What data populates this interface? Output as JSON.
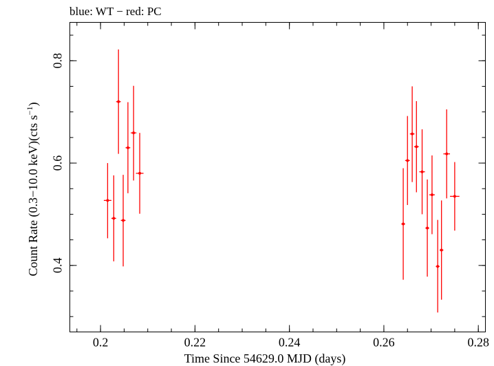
{
  "chart_data": {
    "type": "scatter",
    "title": "blue: WT − red: PC",
    "xlabel": "Time Since 54629.0 MJD (days)",
    "ylabel_main": "Count Rate (0.3−10.0 keV)(cts s",
    "ylabel_sup": "−1",
    "ylabel_tail": ")",
    "xlim": [
      0.1935,
      0.2815
    ],
    "ylim": [
      0.27,
      0.875
    ],
    "xticks": [
      {
        "v": 0.2,
        "label": "0.2"
      },
      {
        "v": 0.22,
        "label": "0.22"
      },
      {
        "v": 0.24,
        "label": "0.24"
      },
      {
        "v": 0.26,
        "label": "0.26"
      },
      {
        "v": 0.28,
        "label": "0.28"
      }
    ],
    "yticks": [
      {
        "v": 0.4,
        "label": "0.4"
      },
      {
        "v": 0.6,
        "label": "0.6"
      },
      {
        "v": 0.8,
        "label": "0.8"
      }
    ],
    "grid": false,
    "series": [
      {
        "color": "#ff0000",
        "points": [
          {
            "x": 0.2015,
            "xerr": 0.0008,
            "y": 0.527,
            "ylo": 0.453,
            "yhi": 0.6
          },
          {
            "x": 0.2028,
            "xerr": 0.0005,
            "y": 0.492,
            "ylo": 0.408,
            "yhi": 0.576
          },
          {
            "x": 0.2038,
            "xerr": 0.0005,
            "y": 0.72,
            "ylo": 0.618,
            "yhi": 0.822
          },
          {
            "x": 0.2048,
            "xerr": 0.0005,
            "y": 0.488,
            "ylo": 0.398,
            "yhi": 0.577
          },
          {
            "x": 0.2058,
            "xerr": 0.0005,
            "y": 0.63,
            "ylo": 0.541,
            "yhi": 0.719
          },
          {
            "x": 0.207,
            "xerr": 0.0006,
            "y": 0.659,
            "ylo": 0.566,
            "yhi": 0.751
          },
          {
            "x": 0.2083,
            "xerr": 0.0008,
            "y": 0.58,
            "ylo": 0.501,
            "yhi": 0.659
          },
          {
            "x": 0.2641,
            "xerr": 0.0004,
            "y": 0.481,
            "ylo": 0.372,
            "yhi": 0.59
          },
          {
            "x": 0.265,
            "xerr": 0.0005,
            "y": 0.605,
            "ylo": 0.518,
            "yhi": 0.692
          },
          {
            "x": 0.266,
            "xerr": 0.0005,
            "y": 0.657,
            "ylo": 0.563,
            "yhi": 0.75
          },
          {
            "x": 0.2669,
            "xerr": 0.0005,
            "y": 0.632,
            "ylo": 0.543,
            "yhi": 0.721
          },
          {
            "x": 0.2681,
            "xerr": 0.0006,
            "y": 0.583,
            "ylo": 0.5,
            "yhi": 0.666
          },
          {
            "x": 0.2692,
            "xerr": 0.0004,
            "y": 0.473,
            "ylo": 0.378,
            "yhi": 0.568
          },
          {
            "x": 0.2702,
            "xerr": 0.0006,
            "y": 0.538,
            "ylo": 0.461,
            "yhi": 0.615
          },
          {
            "x": 0.2714,
            "xerr": 0.0004,
            "y": 0.398,
            "ylo": 0.308,
            "yhi": 0.489
          },
          {
            "x": 0.2722,
            "xerr": 0.0004,
            "y": 0.43,
            "ylo": 0.333,
            "yhi": 0.527
          },
          {
            "x": 0.2733,
            "xerr": 0.0007,
            "y": 0.618,
            "ylo": 0.531,
            "yhi": 0.705
          },
          {
            "x": 0.275,
            "xerr": 0.001,
            "y": 0.535,
            "ylo": 0.468,
            "yhi": 0.602
          }
        ]
      }
    ]
  }
}
